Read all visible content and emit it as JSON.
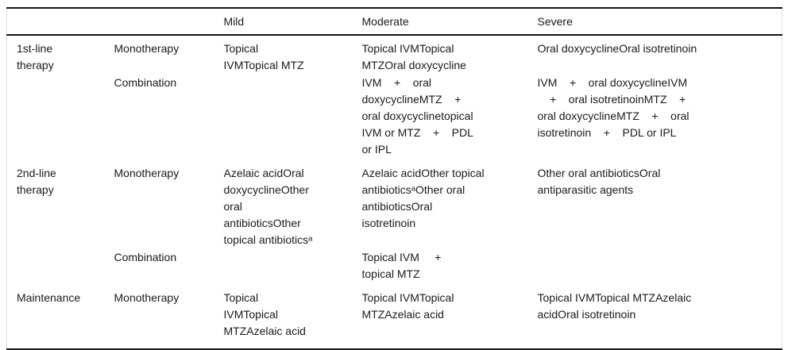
{
  "table": {
    "col_headers": {
      "mild": "Mild",
      "moderate": "Moderate",
      "severe": "Severe"
    },
    "rows": [
      {
        "group": "1st-line\ntherapy",
        "type": "Monotherapy",
        "mild": "Topical\nIVMTopical MTZ",
        "moderate": "Topical IVMTopical\nMTZOral doxycycline",
        "severe": "Oral doxycyclineOral isotretinoin"
      },
      {
        "group": "",
        "type": "Combination",
        "mild": "",
        "moderate": "IVM    +    oral\ndoxycyclineMTZ    +\noral doxycyclinetopical\nIVM or MTZ    +    PDL\nor IPL",
        "severe": "IVM    +    oral doxycyclineIVM\n    +    oral isotretinoinMTZ    +\noral doxycyclineMTZ    +    oral\nisotretinoin    +    PDL or IPL"
      },
      {
        "group": "2nd-line\ntherapy",
        "type": "Monotherapy",
        "mild": "Azelaic acidOral\ndoxycyclineOther\noral\nantibioticsOther\ntopical antibioticsᵃ",
        "moderate": "Azelaic acidOther topical\nantibioticsᵃOther oral\nantibioticsOral\nisotretinoin",
        "severe": "Other oral antibioticsOral\nantiparasitic agents"
      },
      {
        "group": "",
        "type": "Combination",
        "mild": "",
        "moderate": "Topical IVM     +\ntopical MTZ",
        "severe": ""
      },
      {
        "group": "Maintenance",
        "type": "Monotherapy",
        "mild": "Topical\nIVMTopical\nMTZAzelaic acid",
        "moderate": "Topical IVMTopical\nMTZAzelaic acid",
        "severe": "Topical IVMTopical MTZAzelaic\nacidOral isotretinoin"
      }
    ]
  },
  "colors": {
    "rule": "#141414",
    "side_rule": "#e0e0e0",
    "text": "#1a1a1a",
    "background": "#ffffff"
  }
}
